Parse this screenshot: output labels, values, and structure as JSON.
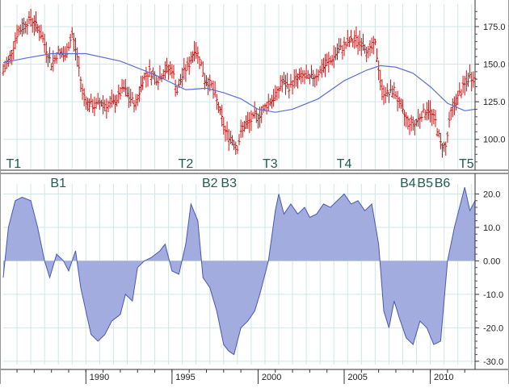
{
  "chart_data": [
    {
      "type": "bar",
      "style": "ohlc",
      "panel": "price",
      "x_range": [
        1985.2,
        2012.6
      ],
      "ylim": [
        80,
        190
      ],
      "y_ticks": [
        100,
        125,
        150,
        175
      ],
      "y_tick_labels": [
        "100.0",
        "125.0",
        "150.0",
        "175.0"
      ],
      "grid": true,
      "series": [
        {
          "role": "price-bars",
          "color": "#cc1111",
          "points": [
            [
              1985.2,
              145
            ],
            [
              1985.6,
              155
            ],
            [
              1986.0,
              170
            ],
            [
              1986.4,
              176
            ],
            [
              1986.8,
              180
            ],
            [
              1987.3,
              173
            ],
            [
              1987.7,
              160
            ],
            [
              1988.0,
              150
            ],
            [
              1988.4,
              158
            ],
            [
              1988.8,
              155
            ],
            [
              1989.2,
              170
            ],
            [
              1989.5,
              155
            ],
            [
              1989.8,
              132
            ],
            [
              1990.1,
              124
            ],
            [
              1990.5,
              122
            ],
            [
              1990.9,
              125
            ],
            [
              1991.3,
              122
            ],
            [
              1991.7,
              125
            ],
            [
              1992.2,
              134
            ],
            [
              1992.5,
              128
            ],
            [
              1992.9,
              123
            ],
            [
              1993.3,
              140
            ],
            [
              1993.7,
              145
            ],
            [
              1994.2,
              140
            ],
            [
              1994.6,
              146
            ],
            [
              1995.0,
              147
            ],
            [
              1995.3,
              132
            ],
            [
              1995.7,
              145
            ],
            [
              1996.0,
              150
            ],
            [
              1996.3,
              160
            ],
            [
              1996.6,
              155
            ],
            [
              1996.9,
              140
            ],
            [
              1997.3,
              136
            ],
            [
              1997.7,
              122
            ],
            [
              1998.1,
              105
            ],
            [
              1998.5,
              100
            ],
            [
              1998.8,
              95
            ],
            [
              1999.1,
              108
            ],
            [
              1999.4,
              110
            ],
            [
              1999.8,
              115
            ],
            [
              2000.2,
              117
            ],
            [
              2000.6,
              125
            ],
            [
              2001.0,
              128
            ],
            [
              2001.4,
              138
            ],
            [
              2001.8,
              135
            ],
            [
              2002.2,
              140
            ],
            [
              2002.6,
              142
            ],
            [
              2003.0,
              140
            ],
            [
              2003.4,
              143
            ],
            [
              2003.8,
              148
            ],
            [
              2004.2,
              152
            ],
            [
              2004.6,
              158
            ],
            [
              2005.0,
              162
            ],
            [
              2005.3,
              165
            ],
            [
              2005.7,
              166
            ],
            [
              2006.1,
              164
            ],
            [
              2006.4,
              158
            ],
            [
              2006.8,
              163
            ],
            [
              2007.2,
              132
            ],
            [
              2007.6,
              130
            ],
            [
              2007.9,
              133
            ],
            [
              2008.3,
              120
            ],
            [
              2008.7,
              112
            ],
            [
              2009.1,
              110
            ],
            [
              2009.5,
              117
            ],
            [
              2009.9,
              120
            ],
            [
              2010.3,
              112
            ],
            [
              2010.6,
              97
            ],
            [
              2010.9,
              95
            ],
            [
              2011.2,
              118
            ],
            [
              2011.6,
              128
            ],
            [
              2012.0,
              136
            ],
            [
              2012.3,
              142
            ],
            [
              2012.6,
              140
            ]
          ]
        },
        {
          "role": "moving-average",
          "color": "#5a6fd6",
          "points": [
            [
              1985.2,
              151
            ],
            [
              1986.5,
              154
            ],
            [
              1988.0,
              157
            ],
            [
              1990.0,
              157
            ],
            [
              1992.0,
              152
            ],
            [
              1994.0,
              143
            ],
            [
              1995.8,
              133
            ],
            [
              1997.0,
              134
            ],
            [
              1998.0,
              131
            ],
            [
              1999.0,
              127
            ],
            [
              2000.0,
              120
            ],
            [
              2001.0,
              118
            ],
            [
              2002.0,
              120
            ],
            [
              2003.5,
              127
            ],
            [
              2005.0,
              139
            ],
            [
              2006.3,
              146
            ],
            [
              2007.1,
              149
            ],
            [
              2008.0,
              148
            ],
            [
              2009.0,
              144
            ],
            [
              2010.0,
              135
            ],
            [
              2011.0,
              124
            ],
            [
              2012.0,
              119
            ],
            [
              2012.6,
              120
            ]
          ]
        }
      ],
      "annotations": [
        "T1",
        "T2",
        "T3",
        "T4",
        "T5"
      ],
      "annotation_x": [
        1985.8,
        1995.8,
        2000.7,
        2005.0,
        2012.1
      ]
    },
    {
      "type": "area",
      "panel": "oscillator",
      "x_range": [
        1985.2,
        2012.6
      ],
      "ylim": [
        -31,
        23
      ],
      "y_ticks": [
        20,
        10,
        0,
        -10,
        -20,
        -30
      ],
      "y_tick_labels": [
        "20.0",
        "10.0",
        "0.00",
        "-10.0",
        "-20.0",
        "-30.0"
      ],
      "x_ticks": [
        1990,
        1995,
        2000,
        2005,
        2010
      ],
      "x_tick_labels": [
        "1990",
        "1995",
        "2000",
        "2005",
        "2010"
      ],
      "grid": true,
      "fill_color": "#a3acdf",
      "line_color": "#4a58b3",
      "points": [
        [
          1985.2,
          -5
        ],
        [
          1985.5,
          10
        ],
        [
          1985.9,
          18
        ],
        [
          1986.3,
          19
        ],
        [
          1986.8,
          18
        ],
        [
          1987.2,
          10
        ],
        [
          1987.6,
          0
        ],
        [
          1987.9,
          -5
        ],
        [
          1988.3,
          2
        ],
        [
          1988.7,
          0
        ],
        [
          1989.0,
          -3
        ],
        [
          1989.4,
          3
        ],
        [
          1989.7,
          -8
        ],
        [
          1990.0,
          -15
        ],
        [
          1990.3,
          -22
        ],
        [
          1990.7,
          -24
        ],
        [
          1991.1,
          -22
        ],
        [
          1991.5,
          -18
        ],
        [
          1992.0,
          -16
        ],
        [
          1992.3,
          -10
        ],
        [
          1992.7,
          -12
        ],
        [
          1993.0,
          -2
        ],
        [
          1993.4,
          0
        ],
        [
          1993.8,
          1
        ],
        [
          1994.3,
          3
        ],
        [
          1994.6,
          5
        ],
        [
          1995.0,
          -3
        ],
        [
          1995.4,
          -4
        ],
        [
          1995.8,
          5
        ],
        [
          1996.1,
          17
        ],
        [
          1996.5,
          12
        ],
        [
          1996.8,
          -5
        ],
        [
          1997.2,
          -8
        ],
        [
          1997.6,
          -15
        ],
        [
          1998.0,
          -25
        ],
        [
          1998.3,
          -27
        ],
        [
          1998.6,
          -28
        ],
        [
          1999.0,
          -20
        ],
        [
          1999.4,
          -18
        ],
        [
          1999.8,
          -15
        ],
        [
          2000.1,
          -10
        ],
        [
          2000.6,
          0
        ],
        [
          2001.0,
          15
        ],
        [
          2001.2,
          20
        ],
        [
          2001.5,
          14
        ],
        [
          2001.9,
          17
        ],
        [
          2002.3,
          14
        ],
        [
          2002.7,
          16
        ],
        [
          2003.0,
          13
        ],
        [
          2003.4,
          14
        ],
        [
          2003.8,
          17
        ],
        [
          2004.2,
          16
        ],
        [
          2004.6,
          18
        ],
        [
          2005.0,
          20
        ],
        [
          2005.4,
          17
        ],
        [
          2005.8,
          18
        ],
        [
          2006.2,
          15
        ],
        [
          2006.6,
          17
        ],
        [
          2007.0,
          5
        ],
        [
          2007.3,
          -15
        ],
        [
          2007.6,
          -20
        ],
        [
          2007.9,
          -12
        ],
        [
          2008.2,
          -17
        ],
        [
          2008.6,
          -23
        ],
        [
          2009.0,
          -25
        ],
        [
          2009.4,
          -18
        ],
        [
          2009.8,
          -20
        ],
        [
          2010.2,
          -25
        ],
        [
          2010.6,
          -24
        ],
        [
          2011.0,
          0
        ],
        [
          2011.4,
          10
        ],
        [
          2011.8,
          18
        ],
        [
          2012.0,
          22
        ],
        [
          2012.3,
          15
        ],
        [
          2012.6,
          18
        ]
      ],
      "annotations": [
        "B1",
        "B2",
        "B3",
        "B4",
        "B5",
        "B6"
      ],
      "annotation_x": [
        1988.4,
        1997.2,
        1998.3,
        2008.7,
        2009.7,
        2010.7
      ]
    }
  ]
}
